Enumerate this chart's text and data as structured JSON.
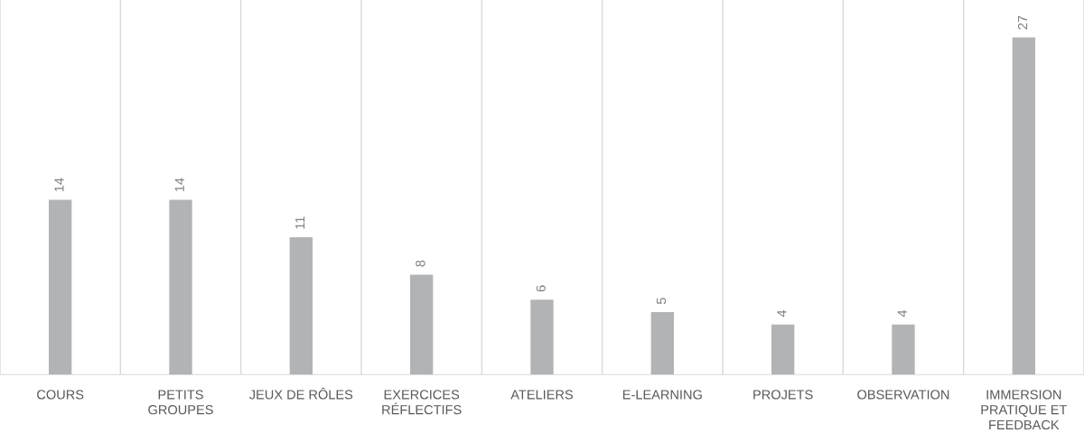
{
  "chart_data": {
    "type": "bar",
    "categories": [
      "COURS",
      "PETITS\nGROUPES",
      "JEUX DE RÔLES",
      "EXERCICES\nRÉFLECTIFS",
      "ATELIERS",
      "E-LEARNING",
      "PROJETS",
      "OBSERVATION",
      "IMMERSION\nPRATIQUE ET\nFEEDBACK"
    ],
    "values": [
      14,
      14,
      11,
      8,
      6,
      5,
      4,
      4,
      27
    ],
    "color": "#b1b3b5",
    "ylim": [
      0,
      30
    ],
    "data_labels": true,
    "grid": "x",
    "tick_labels": "x"
  }
}
